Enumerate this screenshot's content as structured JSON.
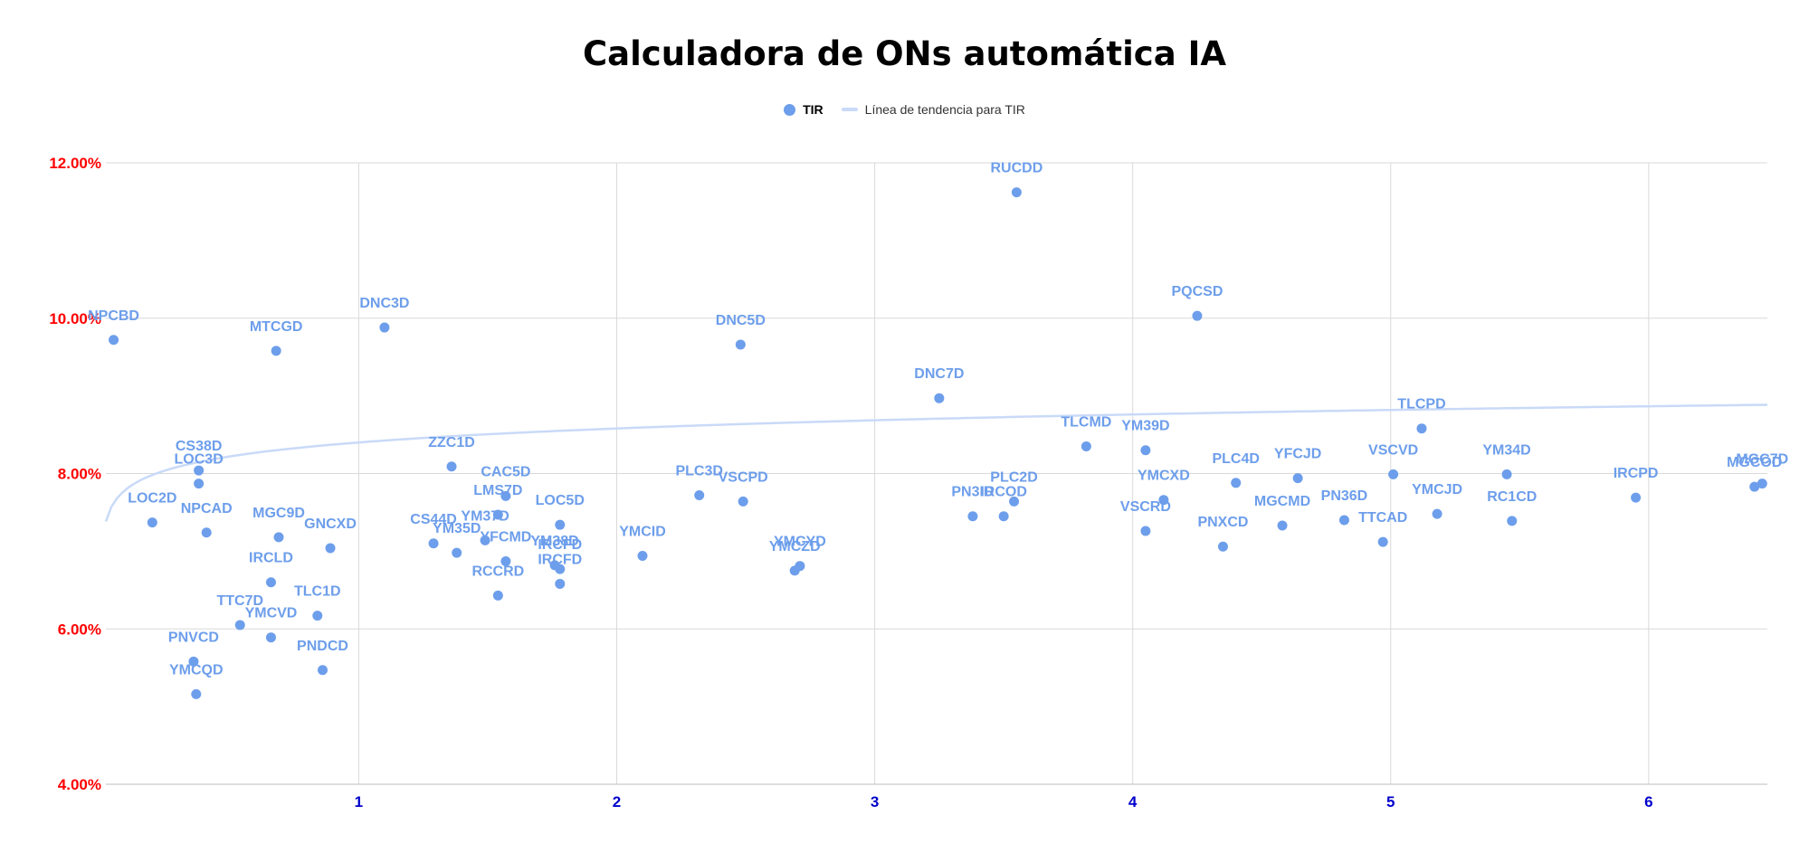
{
  "title": "Calculadora de ONs automática IA",
  "colors": {
    "point": "#6d9eeb",
    "trend": "#c9daf8",
    "grid": "#d9d9d9",
    "ytick": "#ff0000",
    "xtick": "#0000cc",
    "label": "#6d9eeb"
  },
  "legend": {
    "series": "TIR",
    "trend": "Línea de tendencia para TIR"
  },
  "chart_data": {
    "type": "scatter",
    "title": "Calculadora de ONs automática IA",
    "xlabel": "",
    "ylabel": "",
    "xlim": [
      0.02,
      6.46
    ],
    "ylim": [
      4.0,
      12.0
    ],
    "xticks": [
      1,
      2,
      3,
      4,
      5,
      6
    ],
    "yticks": [
      {
        "value": 4,
        "label": "4.00%"
      },
      {
        "value": 6,
        "label": "6.00%"
      },
      {
        "value": 8,
        "label": "8.00%"
      },
      {
        "value": 10,
        "label": "10.00%"
      },
      {
        "value": 12,
        "label": "12.00%"
      }
    ],
    "grid": true,
    "legend_position": "top",
    "trendline": {
      "type": "logarithmic",
      "a": 8.4,
      "b": 0.26
    },
    "series": [
      {
        "name": "TIR",
        "points": [
          {
            "label": "NPCBD",
            "x": 0.05,
            "y": 9.72
          },
          {
            "label": "MTCGD",
            "x": 0.68,
            "y": 9.58
          },
          {
            "label": "DNC3D",
            "x": 1.1,
            "y": 9.88
          },
          {
            "label": "DNC5D",
            "x": 2.48,
            "y": 9.66
          },
          {
            "label": "RUCDD",
            "x": 3.55,
            "y": 11.62
          },
          {
            "label": "PQCSD",
            "x": 4.25,
            "y": 10.03
          },
          {
            "label": "DNC7D",
            "x": 3.25,
            "y": 8.97
          },
          {
            "label": "TLCPD",
            "x": 5.12,
            "y": 8.58
          },
          {
            "label": "TLCMD",
            "x": 3.82,
            "y": 8.35
          },
          {
            "label": "YM39D",
            "x": 4.05,
            "y": 8.3
          },
          {
            "label": "CS38D",
            "x": 0.38,
            "y": 8.04
          },
          {
            "label": "ZZC1D",
            "x": 1.36,
            "y": 8.09
          },
          {
            "label": "LOC3D",
            "x": 0.38,
            "y": 7.87
          },
          {
            "label": "LOC2D",
            "x": 0.2,
            "y": 7.37
          },
          {
            "label": "NPCAD",
            "x": 0.41,
            "y": 7.24
          },
          {
            "label": "MGC9D",
            "x": 0.69,
            "y": 7.18
          },
          {
            "label": "GNCXD",
            "x": 0.89,
            "y": 7.04
          },
          {
            "label": "IRCLD",
            "x": 0.66,
            "y": 6.6
          },
          {
            "label": "TLC1D",
            "x": 0.84,
            "y": 6.17
          },
          {
            "label": "TTC7D",
            "x": 0.54,
            "y": 6.05
          },
          {
            "label": "YMCVD",
            "x": 0.66,
            "y": 5.89
          },
          {
            "label": "PNVCD",
            "x": 0.36,
            "y": 5.58
          },
          {
            "label": "PNDCD",
            "x": 0.86,
            "y": 5.47
          },
          {
            "label": "YMCQD",
            "x": 0.37,
            "y": 5.16
          },
          {
            "label": "CAC5D",
            "x": 1.57,
            "y": 7.71
          },
          {
            "label": "LMS7D",
            "x": 1.54,
            "y": 7.47
          },
          {
            "label": "LOC5D",
            "x": 1.78,
            "y": 7.34
          },
          {
            "label": "CS44D",
            "x": 1.29,
            "y": 7.1
          },
          {
            "label": "YM37D",
            "x": 1.49,
            "y": 7.14
          },
          {
            "label": "YM35D",
            "x": 1.38,
            "y": 6.98
          },
          {
            "label": "YFCMD",
            "x": 1.57,
            "y": 6.87
          },
          {
            "label": "YM38D",
            "x": 1.76,
            "y": 6.82
          },
          {
            "label": "IRCFD",
            "x": 1.78,
            "y": 6.77
          },
          {
            "label": "RCCRD",
            "x": 1.54,
            "y": 6.43
          },
          {
            "label": "IRCFD",
            "x": 1.78,
            "y": 6.58
          },
          {
            "label": "YMCID",
            "x": 2.1,
            "y": 6.94
          },
          {
            "label": "PLC3D",
            "x": 2.32,
            "y": 7.72
          },
          {
            "label": "VSCPD",
            "x": 2.49,
            "y": 7.64
          },
          {
            "label": "YMCYD",
            "x": 2.71,
            "y": 6.81
          },
          {
            "label": "YMCZD",
            "x": 2.69,
            "y": 6.75
          },
          {
            "label": "PLC2D",
            "x": 3.54,
            "y": 7.64
          },
          {
            "label": "PN3ID",
            "x": 3.38,
            "y": 7.45
          },
          {
            "label": "IRCOD",
            "x": 3.5,
            "y": 7.45
          },
          {
            "label": "VSCRD",
            "x": 4.05,
            "y": 7.26
          },
          {
            "label": "YMCXD",
            "x": 4.12,
            "y": 7.66
          },
          {
            "label": "PLC4D",
            "x": 4.4,
            "y": 7.88
          },
          {
            "label": "YFCJD",
            "x": 4.64,
            "y": 7.94
          },
          {
            "label": "MGCMD",
            "x": 4.58,
            "y": 7.33
          },
          {
            "label": "PNXCD",
            "x": 4.35,
            "y": 7.06
          },
          {
            "label": "PN36D",
            "x": 4.82,
            "y": 7.4
          },
          {
            "label": "TTCAD",
            "x": 4.97,
            "y": 7.12
          },
          {
            "label": "VSCVD",
            "x": 5.01,
            "y": 7.99
          },
          {
            "label": "YMCJD",
            "x": 5.18,
            "y": 7.48
          },
          {
            "label": "YM34D",
            "x": 5.45,
            "y": 7.99
          },
          {
            "label": "RC1CD",
            "x": 5.47,
            "y": 7.39
          },
          {
            "label": "IRCPD",
            "x": 5.95,
            "y": 7.69
          },
          {
            "label": "MGCOD",
            "x": 6.41,
            "y": 7.83
          },
          {
            "label": "MGC7D",
            "x": 6.44,
            "y": 7.87
          }
        ]
      }
    ]
  }
}
